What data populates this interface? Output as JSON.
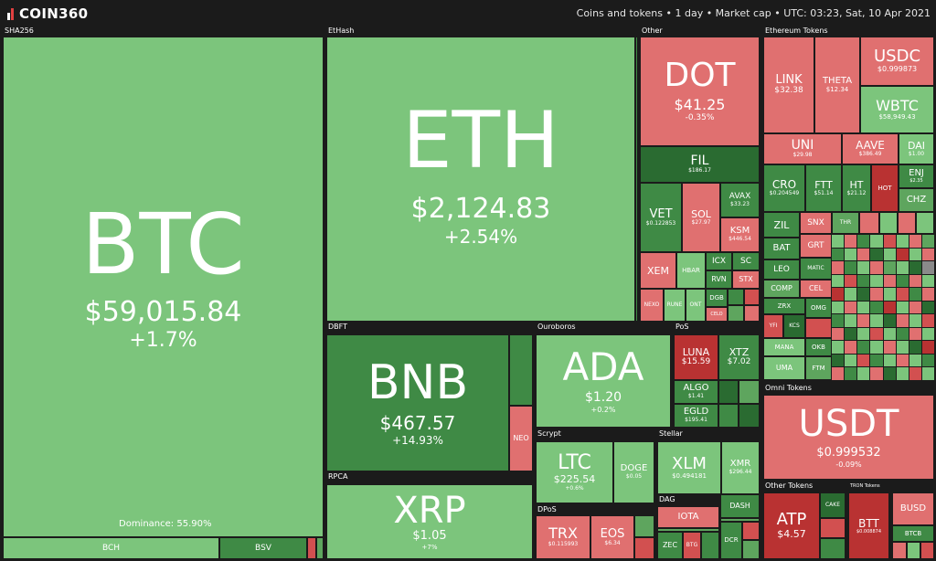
{
  "app": {
    "logo_text": "COIN360"
  },
  "header": {
    "info": "Coins and tokens • 1 day • Market cap • UTC: 03:23, Sat, 10 Apr 2021"
  },
  "groups": {
    "sha256": "SHA256",
    "ethash": "EtHash",
    "other": "Other",
    "eth_tokens": "Ethereum Tokens",
    "dbft": "DBFT",
    "ouroboros": "Ouroboros",
    "pos": "PoS",
    "rpca": "RPCA",
    "scrypt": "Scrypt",
    "stellar": "Stellar",
    "dpos": "DPoS",
    "dag": "DAG",
    "omni": "Omni Tokens",
    "other_tokens": "Other Tokens",
    "tron_tokens": "TRON Tokens"
  },
  "dominance": "Dominance: 55.90%",
  "coins": {
    "btc": {
      "sym": "BTC",
      "price": "$59,015.84",
      "change": "+1.7%"
    },
    "eth": {
      "sym": "ETH",
      "price": "$2,124.83",
      "change": "+2.54%"
    },
    "bnb": {
      "sym": "BNB",
      "price": "$467.57",
      "change": "+14.93%"
    },
    "neo": {
      "sym": "NEO"
    },
    "ada": {
      "sym": "ADA",
      "price": "$1.20",
      "change": "+0.2%"
    },
    "xrp": {
      "sym": "XRP",
      "price": "$1.05",
      "change": "+7%"
    },
    "ltc": {
      "sym": "LTC",
      "price": "$225.54",
      "change": "+0.6%"
    },
    "doge": {
      "sym": "DOGE",
      "price": "$0.05"
    },
    "xlm": {
      "sym": "XLM",
      "price": "$0.494181"
    },
    "xmr": {
      "sym": "XMR",
      "price": "$296.44"
    },
    "dash": {
      "sym": "DASH"
    },
    "trx": {
      "sym": "TRX",
      "price": "$0.115993"
    },
    "eos": {
      "sym": "EOS",
      "price": "$6.34"
    },
    "iota": {
      "sym": "IOTA"
    },
    "zec": {
      "sym": "ZEC"
    },
    "btg": {
      "sym": "BTG"
    },
    "dcr": {
      "sym": "DCR"
    },
    "bch": {
      "sym": "BCH"
    },
    "bsv": {
      "sym": "BSV"
    },
    "dot": {
      "sym": "DOT",
      "price": "$41.25",
      "change": "-0.35%"
    },
    "fil": {
      "sym": "FIL",
      "price": "$186.17"
    },
    "vet": {
      "sym": "VET",
      "price": "$0.122853"
    },
    "sol": {
      "sym": "SOL",
      "price": "$27.97"
    },
    "avax": {
      "sym": "AVAX",
      "price": "$33.23"
    },
    "ksm": {
      "sym": "KSM",
      "price": "$446.54"
    },
    "xem": {
      "sym": "XEM"
    },
    "hbar": {
      "sym": "HBAR"
    },
    "icx": {
      "sym": "ICX"
    },
    "sc": {
      "sym": "SC"
    },
    "rvn": {
      "sym": "RVN"
    },
    "stx": {
      "sym": "STX"
    },
    "nexo": {
      "sym": "NEXO"
    },
    "rune": {
      "sym": "RUNE"
    },
    "ont": {
      "sym": "ONT"
    },
    "dgb": {
      "sym": "DGB"
    },
    "celo": {
      "sym": "CELO"
    },
    "luna": {
      "sym": "LUNA",
      "price": "$15.59"
    },
    "xtz": {
      "sym": "XTZ",
      "price": "$7.02"
    },
    "algo": {
      "sym": "ALGO",
      "price": "$1.41"
    },
    "egld": {
      "sym": "EGLD",
      "price": "$195.41"
    },
    "link": {
      "sym": "LINK",
      "price": "$32.38"
    },
    "theta": {
      "sym": "THETA",
      "price": "$12.34"
    },
    "usdc": {
      "sym": "USDC",
      "price": "$0.999873"
    },
    "wbtc": {
      "sym": "WBTC",
      "price": "$58,949.43"
    },
    "uni": {
      "sym": "UNI",
      "price": "$29.98"
    },
    "aave": {
      "sym": "AAVE",
      "price": "$386.49"
    },
    "dai": {
      "sym": "DAI",
      "price": "$1.00"
    },
    "cro": {
      "sym": "CRO",
      "price": "$0.204549"
    },
    "ftt": {
      "sym": "FTT",
      "price": "$51.14"
    },
    "ht": {
      "sym": "HT",
      "price": "$21.12"
    },
    "hot": {
      "sym": "HOT"
    },
    "enj": {
      "sym": "ENJ",
      "price": "$2.35"
    },
    "chz": {
      "sym": "CHZ"
    },
    "zil": {
      "sym": "ZIL"
    },
    "snx": {
      "sym": "SNX"
    },
    "thr": {
      "sym": "THR"
    },
    "bat": {
      "sym": "BAT"
    },
    "grt": {
      "sym": "GRT"
    },
    "leo": {
      "sym": "LEO"
    },
    "matic": {
      "sym": "MATIC"
    },
    "comp": {
      "sym": "COMP"
    },
    "cel": {
      "sym": "CEL"
    },
    "zrx": {
      "sym": "ZRX"
    },
    "omg": {
      "sym": "OMG"
    },
    "yfi": {
      "sym": "YFI"
    },
    "kcs": {
      "sym": "KCS"
    },
    "mana": {
      "sym": "MANA"
    },
    "okb": {
      "sym": "OKB"
    },
    "uma": {
      "sym": "UMA"
    },
    "ftm": {
      "sym": "FTM"
    },
    "usdt": {
      "sym": "USDT",
      "price": "$0.999532",
      "change": "-0.09%"
    },
    "atp": {
      "sym": "ATP",
      "price": "$4.57"
    },
    "cake": {
      "sym": "CAKE"
    },
    "btt": {
      "sym": "BTT",
      "price": "$0.008874"
    },
    "busd": {
      "sym": "BUSD"
    },
    "btcb": {
      "sym": "BTCB"
    }
  },
  "colors": {
    "up_light": "#7cc57c",
    "up_mid": "#5ea55e",
    "up_dark": "#3f8a45",
    "up_darkest": "#2a6b31",
    "down_light": "#e07070",
    "down_mid": "#d25050",
    "down_dark": "#b93232",
    "background": "#1b1b1b"
  }
}
